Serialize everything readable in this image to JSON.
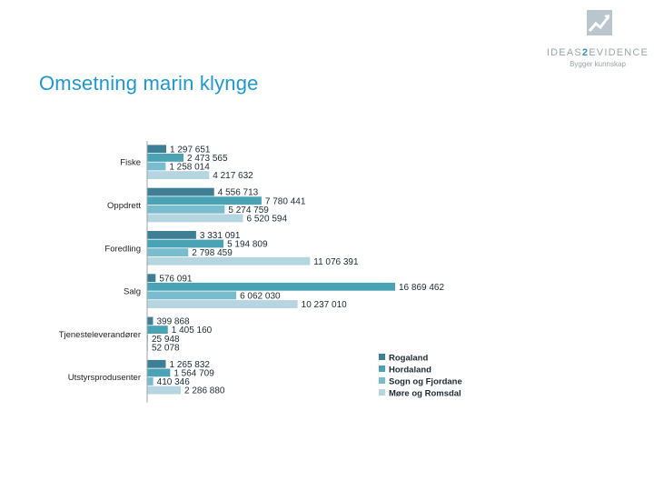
{
  "slide": {
    "title": "Omsetning marin klynge"
  },
  "logo": {
    "name_part1": "IDEAS",
    "name_accent": "2",
    "name_part2": "EVIDENCE",
    "tagline": "Bygger kunnskap",
    "icon": "chart-up-icon"
  },
  "colors": {
    "title": "#1f97d4",
    "series": [
      "#3e7f96",
      "#4aa3b5",
      "#79bccd",
      "#b5d6e1"
    ]
  },
  "chart_data": {
    "type": "bar",
    "orientation": "horizontal",
    "categories": [
      "Fiske",
      "Oppdrett",
      "Foredling",
      "Salg",
      "Tjenesteleverandører",
      "Utstyrsprodusenter"
    ],
    "series": [
      {
        "name": "Rogaland",
        "values": [
          1297651,
          4556713,
          3331091,
          576091,
          399868,
          1265832
        ],
        "labels": [
          "1 297 651",
          "4 556 713",
          "3 331 091",
          "576 091",
          "399 868",
          "1 265 832"
        ]
      },
      {
        "name": "Hordaland",
        "values": [
          2473565,
          7780441,
          5194809,
          16869462,
          1405160,
          1564709
        ],
        "labels": [
          "2 473 565",
          "7 780 441",
          "5 194 809",
          "16 869 462",
          "1 405 160",
          "1 564 709"
        ]
      },
      {
        "name": "Sogn og Fjordane",
        "values": [
          1258014,
          5274759,
          2798459,
          6062030,
          25948,
          410346
        ],
        "labels": [
          "1 258 014",
          "5 274 759",
          "2 798 459",
          "6 062 030",
          "25 948",
          "410 346"
        ]
      },
      {
        "name": "Møre og Romsdal",
        "values": [
          4217632,
          6520594,
          11076391,
          10237010,
          52078,
          2286880
        ],
        "labels": [
          "4 217 632",
          "6 520 594",
          "11 076 391",
          "10 237 010",
          "52 078",
          "2 286 880"
        ]
      }
    ],
    "legend": "bottom-right",
    "grid": false,
    "xlim": [
      0,
      20000000
    ]
  }
}
